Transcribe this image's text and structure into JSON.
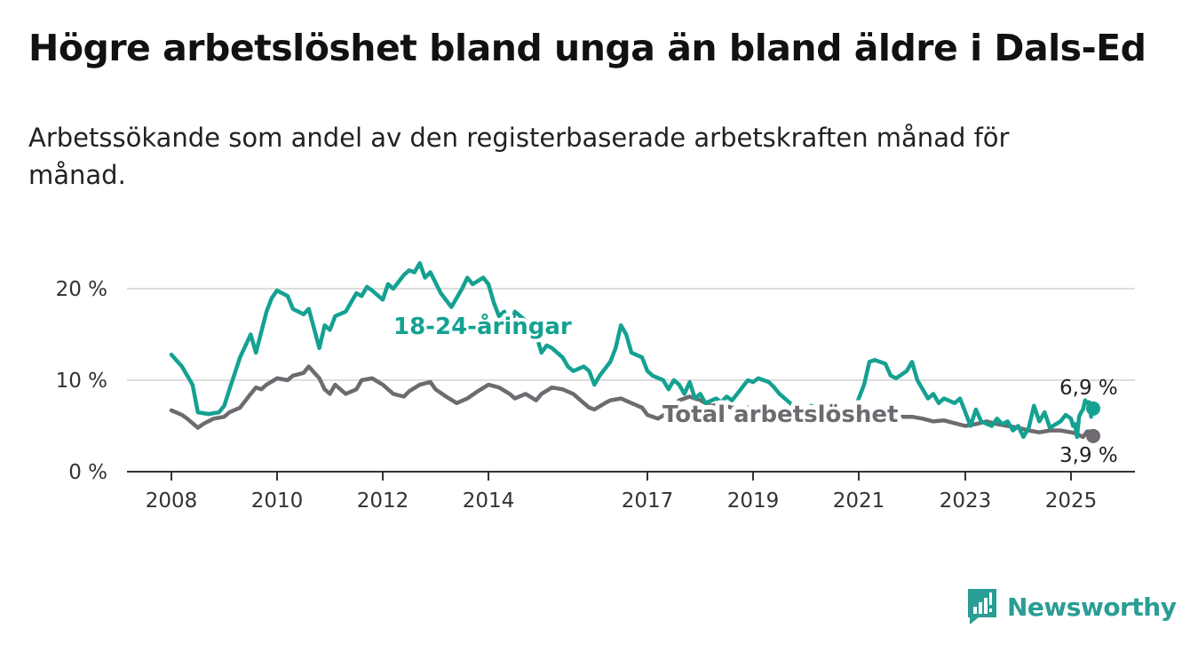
{
  "header": {
    "title": "Högre arbetslöshet bland unga än bland äldre i Dals-Ed",
    "subtitle": "Arbetssökande som andel av den registerbaserade arbetskraften månad för månad."
  },
  "brand": {
    "name": "Newsworthy"
  },
  "colors": {
    "youth": "#14a192",
    "total": "#6e6a70",
    "grid": "#dddddd",
    "axis": "#333333",
    "brand": "#2a9d94"
  },
  "chart_data": {
    "type": "line",
    "title": "Högre arbetslöshet bland unga än bland äldre i Dals-Ed",
    "xlabel": "",
    "ylabel": "",
    "ylim": [
      0,
      23
    ],
    "y_ticks": [
      0,
      10,
      20
    ],
    "y_tick_labels": [
      "0 %",
      "10 %",
      "20 %"
    ],
    "x_ticks": [
      2008,
      2010,
      2012,
      2014,
      2017,
      2019,
      2021,
      2023,
      2025
    ],
    "x_tick_labels": [
      "2008",
      "2010",
      "2012",
      "2014",
      "2017",
      "2019",
      "2021",
      "2023",
      "2025"
    ],
    "grid": true,
    "series": [
      {
        "name": "18-24-åringar",
        "end_label": "6,9 %",
        "points": [
          [
            2008.0,
            12.8
          ],
          [
            2008.2,
            11.5
          ],
          [
            2008.4,
            9.5
          ],
          [
            2008.5,
            6.5
          ],
          [
            2008.7,
            6.3
          ],
          [
            2008.9,
            6.5
          ],
          [
            2009.0,
            7.2
          ],
          [
            2009.1,
            9.0
          ],
          [
            2009.3,
            12.5
          ],
          [
            2009.5,
            15.0
          ],
          [
            2009.6,
            13.0
          ],
          [
            2009.8,
            17.5
          ],
          [
            2009.9,
            19.0
          ],
          [
            2010.0,
            19.8
          ],
          [
            2010.2,
            19.2
          ],
          [
            2010.3,
            17.8
          ],
          [
            2010.5,
            17.2
          ],
          [
            2010.6,
            17.8
          ],
          [
            2010.8,
            13.5
          ],
          [
            2010.9,
            16.0
          ],
          [
            2011.0,
            15.5
          ],
          [
            2011.1,
            17.0
          ],
          [
            2011.3,
            17.5
          ],
          [
            2011.5,
            19.5
          ],
          [
            2011.6,
            19.2
          ],
          [
            2011.7,
            20.2
          ],
          [
            2011.8,
            19.8
          ],
          [
            2012.0,
            18.8
          ],
          [
            2012.1,
            20.5
          ],
          [
            2012.2,
            20.0
          ],
          [
            2012.4,
            21.5
          ],
          [
            2012.5,
            22.0
          ],
          [
            2012.6,
            21.8
          ],
          [
            2012.7,
            22.8
          ],
          [
            2012.8,
            21.2
          ],
          [
            2012.9,
            21.8
          ],
          [
            2013.1,
            19.5
          ],
          [
            2013.3,
            18.0
          ],
          [
            2013.5,
            20.0
          ],
          [
            2013.6,
            21.2
          ],
          [
            2013.7,
            20.5
          ],
          [
            2013.9,
            21.2
          ],
          [
            2014.0,
            20.5
          ],
          [
            2014.1,
            18.5
          ],
          [
            2014.2,
            17.0
          ],
          [
            2014.3,
            17.5
          ],
          [
            2014.4,
            15.0
          ],
          [
            2014.5,
            17.5
          ],
          [
            2014.7,
            16.5
          ],
          [
            2014.9,
            15.0
          ],
          [
            2015.0,
            13.0
          ],
          [
            2015.1,
            13.8
          ],
          [
            2015.2,
            13.5
          ],
          [
            2015.4,
            12.5
          ],
          [
            2015.5,
            11.5
          ],
          [
            2015.6,
            11.0
          ],
          [
            2015.8,
            11.5
          ],
          [
            2015.9,
            11.0
          ],
          [
            2016.0,
            9.5
          ],
          [
            2016.1,
            10.5
          ],
          [
            2016.3,
            12.0
          ],
          [
            2016.4,
            13.5
          ],
          [
            2016.5,
            16.0
          ],
          [
            2016.6,
            15.0
          ],
          [
            2016.7,
            13.0
          ],
          [
            2016.9,
            12.5
          ],
          [
            2017.0,
            11.0
          ],
          [
            2017.1,
            10.5
          ],
          [
            2017.3,
            10.0
          ],
          [
            2017.4,
            9.0
          ],
          [
            2017.5,
            10.0
          ],
          [
            2017.6,
            9.5
          ],
          [
            2017.7,
            8.5
          ],
          [
            2017.8,
            9.8
          ],
          [
            2017.9,
            8.0
          ],
          [
            2018.0,
            8.5
          ],
          [
            2018.1,
            7.5
          ],
          [
            2018.3,
            8.0
          ],
          [
            2018.4,
            7.6
          ],
          [
            2018.5,
            8.2
          ],
          [
            2018.6,
            7.8
          ],
          [
            2018.7,
            8.5
          ],
          [
            2018.9,
            10.0
          ],
          [
            2019.0,
            9.8
          ],
          [
            2019.1,
            10.2
          ],
          [
            2019.3,
            9.8
          ],
          [
            2019.4,
            9.2
          ],
          [
            2019.5,
            8.5
          ],
          [
            2019.6,
            8.0
          ],
          [
            2019.8,
            7.0
          ],
          [
            2020.0,
            6.8
          ],
          [
            2020.1,
            7.2
          ],
          [
            2020.3,
            6.5
          ],
          [
            2020.4,
            6.0
          ],
          [
            2020.5,
            6.8
          ],
          [
            2020.6,
            6.2
          ],
          [
            2020.8,
            7.0
          ],
          [
            2020.9,
            6.5
          ],
          [
            2021.0,
            8.0
          ],
          [
            2021.1,
            9.5
          ],
          [
            2021.2,
            12.0
          ],
          [
            2021.3,
            12.2
          ],
          [
            2021.5,
            11.8
          ],
          [
            2021.6,
            10.5
          ],
          [
            2021.7,
            10.2
          ],
          [
            2021.9,
            11.0
          ],
          [
            2022.0,
            12.0
          ],
          [
            2022.1,
            10.0
          ],
          [
            2022.3,
            8.0
          ],
          [
            2022.4,
            8.5
          ],
          [
            2022.5,
            7.5
          ],
          [
            2022.6,
            8.0
          ],
          [
            2022.8,
            7.5
          ],
          [
            2022.9,
            8.0
          ],
          [
            2023.0,
            6.5
          ],
          [
            2023.1,
            5.0
          ],
          [
            2023.2,
            6.8
          ],
          [
            2023.3,
            5.5
          ],
          [
            2023.5,
            5.0
          ],
          [
            2023.6,
            5.8
          ],
          [
            2023.7,
            5.2
          ],
          [
            2023.8,
            5.5
          ],
          [
            2023.9,
            4.5
          ],
          [
            2024.0,
            5.0
          ],
          [
            2024.1,
            3.8
          ],
          [
            2024.2,
            4.8
          ],
          [
            2024.3,
            7.2
          ],
          [
            2024.4,
            5.5
          ],
          [
            2024.5,
            6.5
          ],
          [
            2024.6,
            4.8
          ],
          [
            2024.8,
            5.5
          ],
          [
            2024.9,
            6.2
          ],
          [
            2025.0,
            5.8
          ],
          [
            2025.1,
            5.0
          ],
          [
            2025.2,
            5.2
          ],
          [
            2025.3,
            3.8
          ],
          [
            2025.4,
            6.0
          ],
          [
            2025.5,
            6.5
          ],
          [
            2025.6,
            6.8
          ],
          [
            2025.7,
            7.8
          ],
          [
            2025.8,
            7.5
          ],
          [
            2025.9,
            7.6
          ],
          [
            2026.0,
            6.0
          ],
          [
            2026.1,
            6.9
          ]
        ]
      },
      {
        "name": "Total arbetslöshet",
        "end_label": "3,9 %",
        "points": [
          [
            2008.0,
            6.7
          ],
          [
            2008.2,
            6.2
          ],
          [
            2008.3,
            5.8
          ],
          [
            2008.5,
            4.8
          ],
          [
            2008.6,
            5.2
          ],
          [
            2008.8,
            5.8
          ],
          [
            2009.0,
            6.0
          ],
          [
            2009.1,
            6.5
          ],
          [
            2009.3,
            7.0
          ],
          [
            2009.5,
            8.5
          ],
          [
            2009.6,
            9.2
          ],
          [
            2009.7,
            9.0
          ],
          [
            2009.8,
            9.5
          ],
          [
            2010.0,
            10.2
          ],
          [
            2010.2,
            10.0
          ],
          [
            2010.3,
            10.5
          ],
          [
            2010.5,
            10.8
          ],
          [
            2010.6,
            11.5
          ],
          [
            2010.8,
            10.2
          ],
          [
            2010.9,
            9.0
          ],
          [
            2011.0,
            8.5
          ],
          [
            2011.1,
            9.5
          ],
          [
            2011.3,
            8.5
          ],
          [
            2011.5,
            9.0
          ],
          [
            2011.6,
            10.0
          ],
          [
            2011.8,
            10.2
          ],
          [
            2012.0,
            9.5
          ],
          [
            2012.2,
            8.5
          ],
          [
            2012.4,
            8.2
          ],
          [
            2012.5,
            8.8
          ],
          [
            2012.7,
            9.5
          ],
          [
            2012.9,
            9.8
          ],
          [
            2013.0,
            9.0
          ],
          [
            2013.2,
            8.2
          ],
          [
            2013.4,
            7.5
          ],
          [
            2013.6,
            8.0
          ],
          [
            2013.8,
            8.8
          ],
          [
            2014.0,
            9.5
          ],
          [
            2014.2,
            9.2
          ],
          [
            2014.4,
            8.5
          ],
          [
            2014.5,
            8.0
          ],
          [
            2014.7,
            8.5
          ],
          [
            2014.9,
            7.8
          ],
          [
            2015.0,
            8.5
          ],
          [
            2015.2,
            9.2
          ],
          [
            2015.4,
            9.0
          ],
          [
            2015.6,
            8.5
          ],
          [
            2015.8,
            7.5
          ],
          [
            2015.9,
            7.0
          ],
          [
            2016.0,
            6.8
          ],
          [
            2016.2,
            7.5
          ],
          [
            2016.3,
            7.8
          ],
          [
            2016.5,
            8.0
          ],
          [
            2016.7,
            7.5
          ],
          [
            2016.9,
            7.0
          ],
          [
            2017.0,
            6.2
          ],
          [
            2017.2,
            5.8
          ],
          [
            2017.4,
            6.5
          ],
          [
            2017.6,
            7.8
          ],
          [
            2017.8,
            8.2
          ],
          [
            2018.0,
            7.8
          ],
          [
            2018.2,
            7.2
          ],
          [
            2018.4,
            7.3
          ],
          [
            2018.6,
            7.0
          ],
          [
            2018.8,
            7.0
          ],
          [
            2019.0,
            7.0
          ],
          [
            2019.2,
            6.8
          ],
          [
            2019.4,
            6.5
          ],
          [
            2019.6,
            6.2
          ],
          [
            2019.8,
            6.0
          ],
          [
            2020.0,
            6.2
          ],
          [
            2020.2,
            6.5
          ],
          [
            2020.4,
            6.8
          ],
          [
            2020.6,
            6.5
          ],
          [
            2020.8,
            6.2
          ],
          [
            2021.0,
            6.0
          ],
          [
            2021.2,
            6.3
          ],
          [
            2021.4,
            6.5
          ],
          [
            2021.6,
            6.2
          ],
          [
            2021.8,
            6.0
          ],
          [
            2022.0,
            6.0
          ],
          [
            2022.2,
            5.8
          ],
          [
            2022.4,
            5.5
          ],
          [
            2022.6,
            5.6
          ],
          [
            2022.8,
            5.3
          ],
          [
            2023.0,
            5.0
          ],
          [
            2023.2,
            5.2
          ],
          [
            2023.4,
            5.5
          ],
          [
            2023.6,
            5.2
          ],
          [
            2023.8,
            5.0
          ],
          [
            2024.0,
            4.8
          ],
          [
            2024.2,
            4.5
          ],
          [
            2024.4,
            4.3
          ],
          [
            2024.6,
            4.5
          ],
          [
            2024.8,
            4.5
          ],
          [
            2025.0,
            4.3
          ],
          [
            2025.2,
            4.2
          ],
          [
            2025.4,
            4.0
          ],
          [
            2025.6,
            3.8
          ],
          [
            2025.8,
            4.4
          ],
          [
            2026.0,
            4.4
          ],
          [
            2026.1,
            3.9
          ]
        ]
      }
    ]
  }
}
